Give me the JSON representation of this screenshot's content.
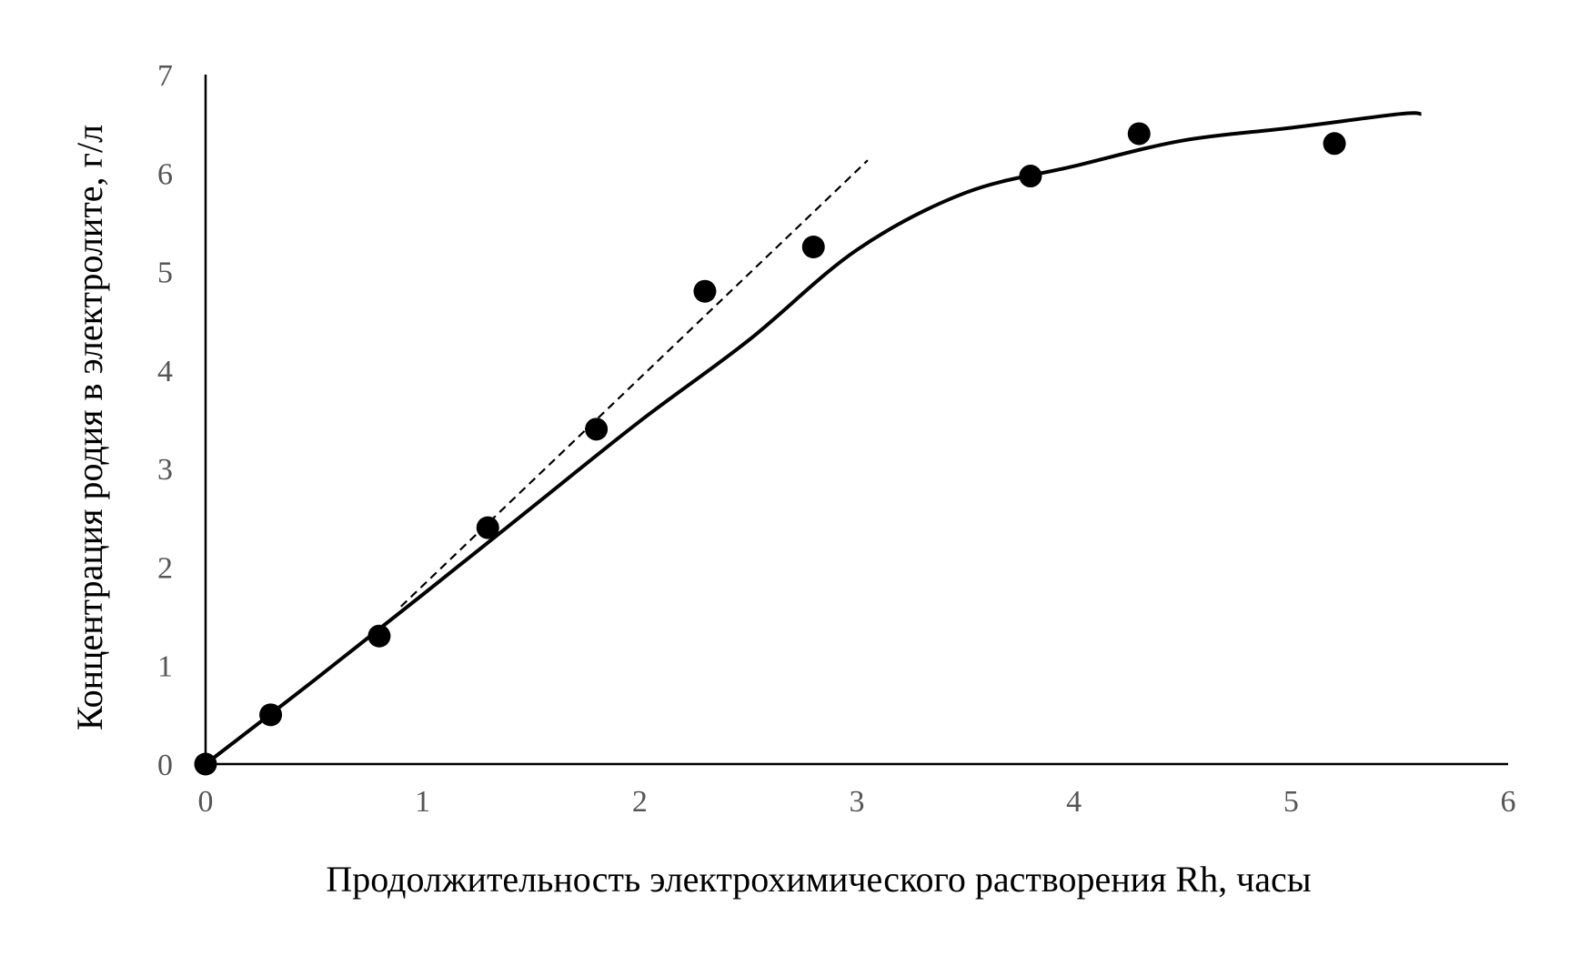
{
  "chart_data": {
    "type": "scatter",
    "xlabel": "Продолжительность электрохимического растворения Rh, часы",
    "ylabel": "Концентрация родия в электролите, г/л",
    "xlim": [
      0,
      6
    ],
    "ylim": [
      0,
      7
    ],
    "xticks": [
      "0",
      "1",
      "2",
      "3",
      "4",
      "5",
      "6"
    ],
    "yticks": [
      "0",
      "1",
      "2",
      "3",
      "4",
      "5",
      "6",
      "7"
    ],
    "grid": false,
    "legend": "none",
    "points": [
      {
        "x": 0.0,
        "y": 0.0
      },
      {
        "x": 0.3,
        "y": 0.5
      },
      {
        "x": 0.8,
        "y": 1.3
      },
      {
        "x": 1.3,
        "y": 2.4
      },
      {
        "x": 1.8,
        "y": 3.4
      },
      {
        "x": 2.3,
        "y": 4.8
      },
      {
        "x": 2.8,
        "y": 5.25
      },
      {
        "x": 3.8,
        "y": 5.97
      },
      {
        "x": 4.3,
        "y": 6.4
      },
      {
        "x": 5.2,
        "y": 6.3
      }
    ],
    "trend_curve": [
      {
        "x": 0.0,
        "y": 0.0
      },
      {
        "x": 0.5,
        "y": 0.85
      },
      {
        "x": 1.0,
        "y": 1.72
      },
      {
        "x": 1.5,
        "y": 2.6
      },
      {
        "x": 2.0,
        "y": 3.48
      },
      {
        "x": 2.5,
        "y": 4.3
      },
      {
        "x": 3.0,
        "y": 5.22
      },
      {
        "x": 3.5,
        "y": 5.8
      },
      {
        "x": 4.0,
        "y": 6.07
      },
      {
        "x": 4.5,
        "y": 6.33
      },
      {
        "x": 5.0,
        "y": 6.46
      },
      {
        "x": 5.5,
        "y": 6.6
      },
      {
        "x": 5.6,
        "y": 6.6
      }
    ],
    "tangent_line": [
      {
        "x": 0.9,
        "y": 1.6
      },
      {
        "x": 3.05,
        "y": 6.13
      }
    ],
    "colors": {
      "points": "#000000",
      "curve": "#000000",
      "axes": "#000000",
      "tick_labels": "#555555"
    }
  }
}
